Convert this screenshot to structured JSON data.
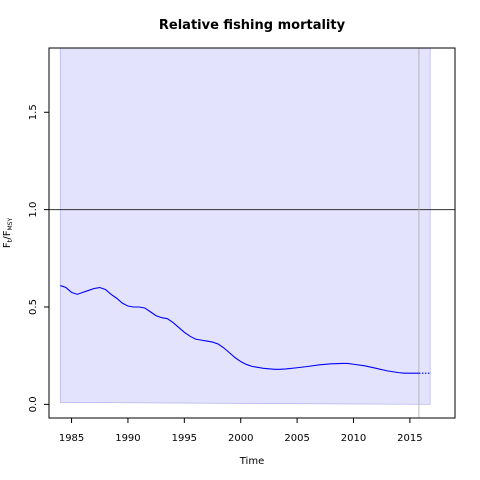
{
  "chart_data": {
    "type": "line",
    "title": "Relative fishing mortality",
    "xlabel": "Time",
    "ylabel": {
      "main": "F",
      "sub1": "t",
      "sep": "/F",
      "sub2": "MSY"
    },
    "xlim": [
      1983.0,
      2019.0
    ],
    "ylim": [
      -0.07,
      1.83
    ],
    "x_ticks": [
      1985,
      1990,
      1995,
      2000,
      2005,
      2010,
      2015
    ],
    "y_ticks": [
      0.0,
      0.5,
      1.0,
      1.5
    ],
    "x_tick_labels": [
      "1985",
      "1990",
      "1995",
      "2000",
      "2005",
      "2010",
      "2015"
    ],
    "y_tick_labels": [
      "0.0",
      "0.5",
      "1.0",
      "1.5"
    ],
    "reference_line": {
      "y": 1.0,
      "color": "#333333"
    },
    "vertical_line": {
      "x": 2015.8,
      "color": "#aaaaaa"
    },
    "confidence_band": {
      "color": "#e3e3fd",
      "edge_color": "#b8b8f0",
      "x": [
        1984.0,
        2016.8
      ],
      "upper": [
        1.83,
        1.83
      ],
      "lower": [
        0.01,
        0.0
      ]
    },
    "series": [
      {
        "color": "#0000ff",
        "style": "solid",
        "x": [
          1984.0,
          1984.5,
          1985.0,
          1985.5,
          1986.0,
          1986.5,
          1987.0,
          1987.5,
          1988.0,
          1988.5,
          1989.0,
          1989.5,
          1990.0,
          1990.5,
          1991.0,
          1991.5,
          1992.0,
          1992.5,
          1993.0,
          1993.5,
          1994.0,
          1994.5,
          1995.0,
          1995.5,
          1996.0,
          1996.5,
          1997.0,
          1997.5,
          1998.0,
          1998.5,
          1999.0,
          1999.5,
          2000.0,
          2000.5,
          2001.0,
          2002.0,
          2003.0,
          2003.5,
          2004.0,
          2005.0,
          2006.0,
          2007.0,
          2008.0,
          2009.0,
          2009.5,
          2010.0,
          2011.0,
          2012.0,
          2013.0,
          2014.0,
          2014.5,
          2015.0,
          2015.8
        ],
        "values": [
          0.61,
          0.6,
          0.575,
          0.565,
          0.575,
          0.585,
          0.595,
          0.6,
          0.59,
          0.565,
          0.545,
          0.52,
          0.505,
          0.5,
          0.5,
          0.495,
          0.475,
          0.455,
          0.445,
          0.44,
          0.42,
          0.395,
          0.37,
          0.35,
          0.335,
          0.33,
          0.325,
          0.32,
          0.31,
          0.29,
          0.265,
          0.24,
          0.22,
          0.205,
          0.195,
          0.185,
          0.18,
          0.18,
          0.182,
          0.188,
          0.195,
          0.203,
          0.208,
          0.21,
          0.21,
          0.206,
          0.198,
          0.185,
          0.172,
          0.163,
          0.16,
          0.16,
          0.16
        ]
      },
      {
        "color": "#0000ff",
        "style": "dotted",
        "x": [
          2015.8,
          2016.8
        ],
        "values": [
          0.16,
          0.16
        ]
      }
    ]
  }
}
